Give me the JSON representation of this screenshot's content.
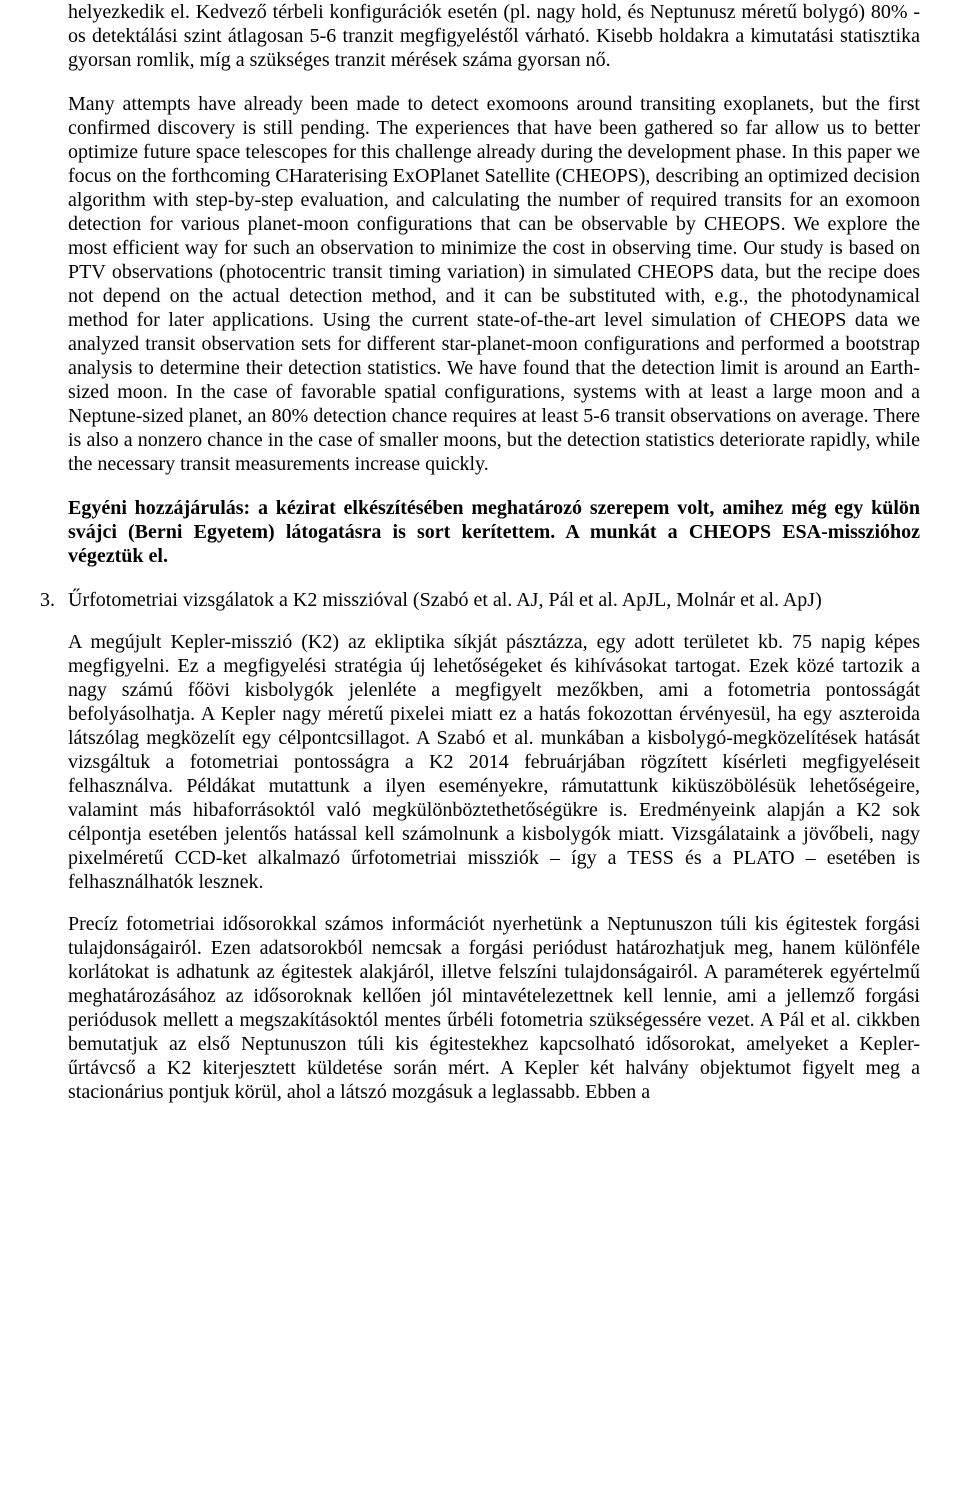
{
  "p1": "helyezkedik el. Kedvező térbeli konfigurációk esetén (pl. nagy hold, és Neptunusz méretű bolygó) 80% -os detektálási szint átlagosan 5-6 tranzit megfigyeléstől várható. Kisebb holdakra a kimutatási statisztika gyorsan romlik, míg a szükséges tranzit mérések száma gyorsan nő.",
  "p2": "Many attempts have already been made to detect exomoons around transiting exoplanets, but the first confirmed discovery is still pending. The experiences that have been gathered so far allow us to better optimize future space telescopes for this challenge already during the development phase. In this paper we focus on the forthcoming CHaraterising ExOPlanet Satellite (CHEOPS), describing an optimized decision algorithm with step-by-step evaluation, and calculating the number of required transits for an exomoon detection for various planet-moon configurations that can be observable by CHEOPS. We explore the most efficient way for such an observation to minimize the cost in observing time. Our study is based on PTV observations (photocentric transit timing variation) in simulated CHEOPS data, but the recipe does not depend on the actual detection method, and it can be substituted with, e.g., the photodynamical method for later applications. Using the current state-of-the-art level simulation of CHEOPS data we analyzed transit observation sets for different star-planet-moon configurations and performed a bootstrap analysis to determine their detection statistics. We have found that the detection limit is around an Earth-sized moon. In the case of favorable spatial configurations, systems with at least a large moon and a Neptune-sized planet, an 80% detection chance requires at least 5-6 transit observations on average. There is also a nonzero chance in the case of smaller moons, but the detection statistics deteriorate rapidly, while the necessary transit measurements increase quickly.",
  "p3": "Egyéni hozzájárulás: a kézirat elkészítésében meghatározó szerepem volt, amihez még egy külön svájci (Berni Egyetem) látogatásra is sort kerítettem. A munkát a CHEOPS ESA-misszióhoz végeztük el.",
  "item3_num": "3.",
  "item3_head": "Űrfotometriai vizsgálatok a K2 misszióval (Szabó et al. AJ, Pál et al. ApJL, Molnár et al. ApJ)",
  "item3_p1": "A megújult Kepler-misszió (K2) az ekliptika síkját pásztázza, egy adott területet kb. 75 napig képes megfigyelni. Ez a megfigyelési stratégia új lehetőségeket és kihívásokat tartogat. Ezek közé tartozik a nagy számú főövi kisbolygók jelenléte a megfigyelt mezőkben, ami a fotometria pontosságát befolyásolhatja. A Kepler nagy méretű pixelei miatt ez a hatás fokozottan érvényesül, ha egy aszteroida látszólag megközelít egy célpontcsillagot. A Szabó et al. munkában a kisbolygó-megközelítések hatását vizsgáltuk a fotometriai pontosságra a K2 2014 februárjában rögzített kísérleti megfigyeléseit felhasználva. Példákat mutattunk a ilyen eseményekre, rámutattunk kiküszöbölésük lehetőségeire, valamint más hibaforrásoktól való megkülönböztethetőségükre is. Eredményeink alapján a K2 sok célpontja esetében jelentős hatással kell számolnunk a kisbolygók miatt. Vizsgálataink a jövőbeli, nagy pixelméretű CCD-ket alkalmazó űrfotometriai missziók – így a TESS és a PLATO – esetében is felhasználhatók lesznek.",
  "item3_p2": "Precíz fotometriai idősorokkal számos információt nyerhetünk a Neptunuszon túli kis égitestek forgási tulajdonságairól. Ezen adatsorokból nemcsak a forgási periódust határozhatjuk meg, hanem különféle korlátokat is adhatunk az égitestek alakjáról, illetve felszíni tulajdonságairól. A paraméterek egyértelmű meghatározásához az idősoroknak kellően jól mintavételezettnek kell lennie, ami a jellemző forgási periódusok mellett a megszakításoktól mentes űrbéli fotometria szükségessére vezet. A Pál et al. cikkben bemutatjuk az első Neptunuszon túli kis égitestekhez kapcsolható idősorokat, amelyeket a Kepler-űrtávcső a K2 kiterjesztett küldetése során mért. A Kepler két halvány objektumot figyelt meg a stacionárius pontjuk körül, ahol a látszó mozgásuk a leglassabb. Ebben a"
}
